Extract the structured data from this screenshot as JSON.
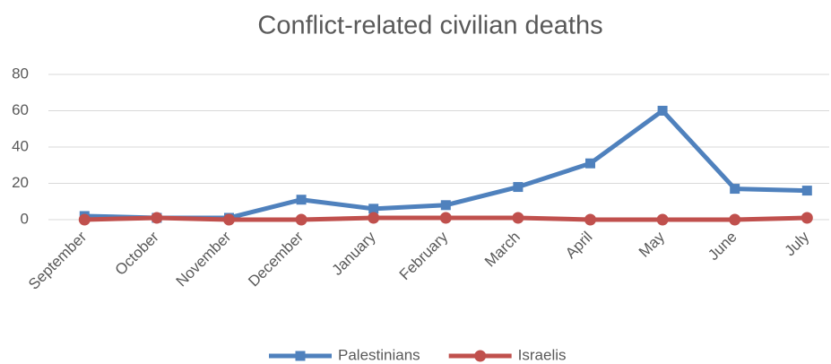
{
  "chart_data": {
    "type": "line",
    "title": "Conflict-related civilian deaths",
    "categories": [
      "September",
      "October",
      "November",
      "December",
      "January",
      "February",
      "March",
      "April",
      "May",
      "June",
      "July"
    ],
    "series": [
      {
        "name": "Palestinians",
        "color": "#4f81bd",
        "marker": "square",
        "values": [
          2,
          1,
          1,
          11,
          6,
          8,
          18,
          31,
          60,
          17,
          16
        ]
      },
      {
        "name": "Israelis",
        "color": "#c0504d",
        "marker": "circle",
        "values": [
          0,
          1,
          0,
          0,
          1,
          1,
          1,
          0,
          0,
          0,
          1
        ]
      }
    ],
    "ylim": [
      0,
      80
    ],
    "yticks": [
      0,
      20,
      40,
      60,
      80
    ],
    "grid": true,
    "legend": "bottom"
  }
}
